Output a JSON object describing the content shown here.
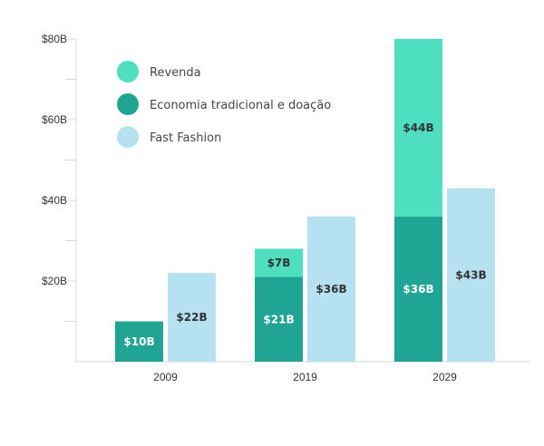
{
  "chart_data": {
    "type": "bar",
    "title": "",
    "xlabel": "",
    "ylabel": "",
    "ylim": [
      0,
      80
    ],
    "yticks": [
      {
        "value": 20,
        "label": "$20B"
      },
      {
        "value": 40,
        "label": "$40B"
      },
      {
        "value": 60,
        "label": "$60B"
      },
      {
        "value": 80,
        "label": "$80B"
      }
    ],
    "categories": [
      "2009",
      "2019",
      "2029"
    ],
    "stacked_series": [
      {
        "name": "Economia tradicional e doação",
        "color": "#20a595",
        "label_color": "#ffffff",
        "values": [
          10,
          21,
          36
        ],
        "labels": [
          "$10B",
          "$21B",
          "$36B"
        ]
      },
      {
        "name": "Revenda",
        "color": "#4ddfbf",
        "label_color": "#333333",
        "values": [
          0,
          7,
          44
        ],
        "labels": [
          "",
          "$7B",
          "$44B"
        ]
      }
    ],
    "separate_series": [
      {
        "name": "Fast Fashion",
        "color": "#b5e1f0",
        "label_color": "#333333",
        "values": [
          22,
          36,
          43
        ],
        "labels": [
          "$22B",
          "$36B",
          "$43B"
        ]
      }
    ],
    "legend": {
      "placement": "top-left",
      "items": [
        {
          "label": "Revenda",
          "color": "#4ddfbf"
        },
        {
          "label": "Economia tradicional e doação",
          "color": "#20a595"
        },
        {
          "label": "Fast Fashion",
          "color": "#b5e1f0"
        }
      ]
    }
  }
}
